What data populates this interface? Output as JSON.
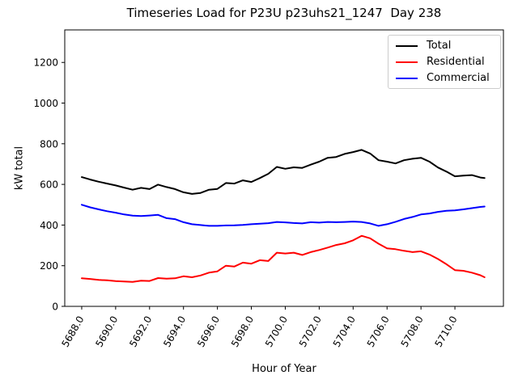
{
  "title": "Timeseries Load for P23U p23uhs21_1247  Day 238",
  "chart_data": {
    "type": "line",
    "title": "Timeseries Load for P23U p23uhs21_1247  Day 238",
    "xlabel": "Hour of Year",
    "ylabel": "kW total",
    "grid": false,
    "legend_position": "upper right",
    "xlim": [
      5687.0,
      5712.86
    ],
    "ylim": [
      0,
      1360
    ],
    "x_ticks": {
      "values": [
        5688,
        5690,
        5692,
        5694,
        5696,
        5698,
        5700,
        5702,
        5704,
        5706,
        5708,
        5710
      ],
      "labels": [
        "5688.0",
        "5690.0",
        "5692.0",
        "5694.0",
        "5696.0",
        "5698.0",
        "5700.0",
        "5702.0",
        "5704.0",
        "5706.0",
        "5708.0",
        "5710.0"
      ],
      "rotation_deg": 60
    },
    "y_ticks": {
      "values": [
        0,
        200,
        400,
        600,
        800,
        1000,
        1200
      ],
      "labels": [
        "0",
        "200",
        "400",
        "600",
        "800",
        "1000",
        "1200"
      ]
    },
    "x": [
      5688.0,
      5688.5,
      5689.0,
      5689.5,
      5690.0,
      5690.5,
      5691.0,
      5691.5,
      5692.0,
      5692.5,
      5693.0,
      5693.5,
      5694.0,
      5694.5,
      5695.0,
      5695.5,
      5696.0,
      5696.5,
      5697.0,
      5697.5,
      5698.0,
      5698.5,
      5699.0,
      5699.5,
      5700.0,
      5700.5,
      5701.0,
      5701.5,
      5702.0,
      5702.5,
      5703.0,
      5703.5,
      5704.0,
      5704.5,
      5705.0,
      5705.5,
      5706.0,
      5706.5,
      5707.0,
      5707.5,
      5708.0,
      5708.5,
      5709.0,
      5709.5,
      5710.0,
      5710.5,
      5711.0,
      5711.5,
      5711.75
    ],
    "series": [
      {
        "name": "Total",
        "color": "#000000",
        "values": [
          636,
          624,
          613,
          604,
          595,
          584,
          574,
          583,
          577,
          599,
          587,
          577,
          561,
          553,
          558,
          574,
          578,
          607,
          604,
          620,
          612,
          631,
          652,
          686,
          677,
          684,
          681,
          697,
          712,
          731,
          735,
          750,
          759,
          770,
          752,
          719,
          712,
          703,
          719,
          726,
          731,
          712,
          683,
          663,
          640,
          643,
          646,
          634,
          631
        ]
      },
      {
        "name": "Residential",
        "color": "#ff0000",
        "values": [
          138,
          135,
          130,
          128,
          124,
          122,
          120,
          126,
          125,
          139,
          136,
          138,
          148,
          143,
          152,
          166,
          172,
          200,
          196,
          215,
          210,
          227,
          223,
          264,
          260,
          264,
          253,
          267,
          277,
          289,
          302,
          310,
          325,
          347,
          335,
          308,
          285,
          281,
          273,
          267,
          271,
          255,
          233,
          207,
          178,
          175,
          166,
          153,
          143
        ]
      },
      {
        "name": "Commercial",
        "color": "#0000ff",
        "values": [
          500,
          487,
          477,
          468,
          461,
          452,
          446,
          444,
          447,
          450,
          434,
          429,
          414,
          404,
          400,
          396,
          396,
          398,
          399,
          401,
          404,
          407,
          409,
          415,
          413,
          410,
          408,
          414,
          412,
          415,
          414,
          415,
          417,
          415,
          408,
          396,
          404,
          416,
          430,
          440,
          452,
          457,
          465,
          470,
          472,
          477,
          483,
          489,
          491
        ]
      }
    ]
  }
}
